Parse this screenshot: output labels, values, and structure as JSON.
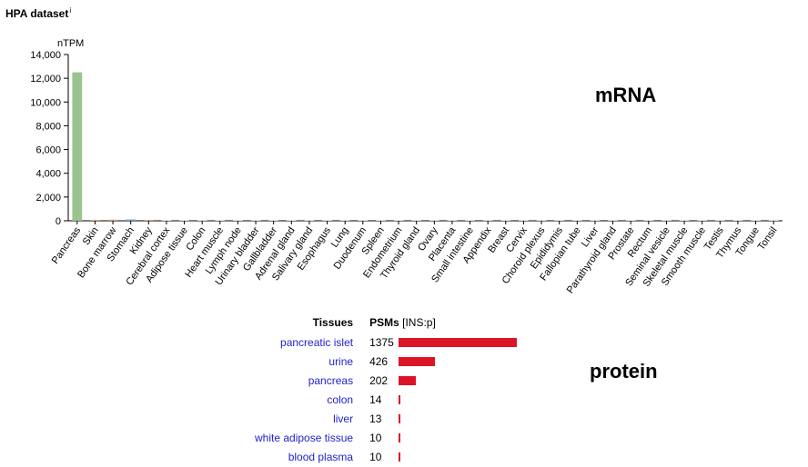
{
  "heading": {
    "title": "HPA dataset",
    "info_mark": "i"
  },
  "chart_data": {
    "type": "bar",
    "ylabel": "nTPM",
    "ylim": [
      0,
      14000
    ],
    "yticks": [
      "0",
      "2,000",
      "4,000",
      "6,000",
      "8,000",
      "10,000",
      "12,000",
      "14,000"
    ],
    "annotation": "mRNA",
    "categories": [
      "Pancreas",
      "Skin",
      "Bone marrow",
      "Stomach",
      "Kidney",
      "Cerebral cortex",
      "Adipose tissue",
      "Colon",
      "Heart muscle",
      "Lymph node",
      "Urinary bladder",
      "Gallbladder",
      "Adrenal gland",
      "Salivary gland",
      "Esophagus",
      "Lung",
      "Duodenum",
      "Spleen",
      "Endometrium",
      "Thyroid gland",
      "Ovary",
      "Placenta",
      "Small intestine",
      "Appendix",
      "Breast",
      "Cervix",
      "Choroid plexus",
      "Epididymis",
      "Fallopian tube",
      "Liver",
      "Parathyroid gland",
      "Prostate",
      "Rectum",
      "Seminal vesicle",
      "Skeletal muscle",
      "Smooth muscle",
      "Testis",
      "Thymus",
      "Tongue",
      "Tonsil"
    ],
    "values": [
      12500,
      60,
      90,
      110,
      70,
      20,
      10,
      5,
      5,
      5,
      5,
      5,
      5,
      5,
      5,
      5,
      5,
      5,
      5,
      5,
      5,
      5,
      5,
      5,
      5,
      5,
      5,
      5,
      5,
      5,
      5,
      5,
      5,
      5,
      5,
      5,
      5,
      5,
      5,
      5
    ],
    "colors": [
      "#9ac48f",
      "#c48a5e",
      "#d79a7a",
      "#7a9ac4",
      "#c49a7a",
      "#d0d0d0",
      "#d0d0d0",
      "#d0d0d0",
      "#d0d0d0",
      "#d0d0d0",
      "#d0d0d0",
      "#d0d0d0",
      "#d0d0d0",
      "#d0d0d0",
      "#d0d0d0",
      "#d0d0d0",
      "#d0d0d0",
      "#d0d0d0",
      "#d0d0d0",
      "#d0d0d0",
      "#d0d0d0",
      "#d0d0d0",
      "#d0d0d0",
      "#d0d0d0",
      "#d0d0d0",
      "#d0d0d0",
      "#d0d0d0",
      "#d0d0d0",
      "#d0d0d0",
      "#d0d0d0",
      "#d0d0d0",
      "#d0d0d0",
      "#d0d0d0",
      "#d0d0d0",
      "#d0d0d0",
      "#d0d0d0",
      "#d0d0d0",
      "#d0d0d0",
      "#d0d0d0",
      "#d0d0d0"
    ],
    "grid": false
  },
  "protein": {
    "header_tissues": "Tissues",
    "header_psms": "PSMs",
    "header_unit": "[INS:p]",
    "label": "protein",
    "bar_color": "#dc1428",
    "max_value": 1375,
    "rows": [
      {
        "tissue": "pancreatic islet",
        "value": 1375
      },
      {
        "tissue": "urine",
        "value": 426
      },
      {
        "tissue": "pancreas",
        "value": 202
      },
      {
        "tissue": "colon",
        "value": 14
      },
      {
        "tissue": "liver",
        "value": 13
      },
      {
        "tissue": "white adipose tissue",
        "value": 10
      },
      {
        "tissue": "blood plasma",
        "value": 10
      }
    ]
  }
}
